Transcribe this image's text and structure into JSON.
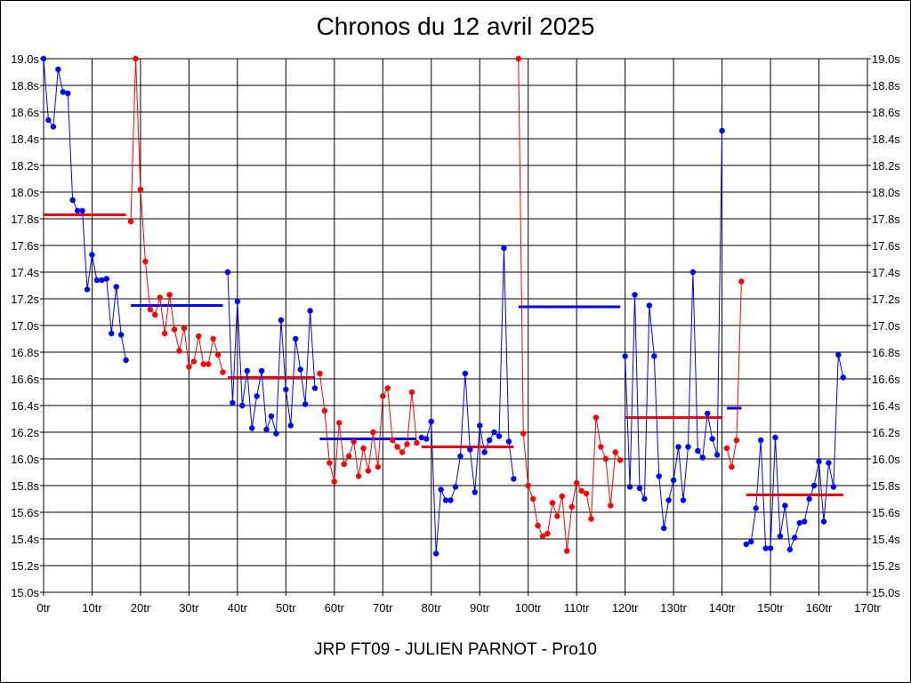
{
  "chart_data": {
    "type": "line",
    "title": "Chronos du 12 avril 2025",
    "subtitle": "JRP FT09 - JULIEN PARNOT - Pro10",
    "xlim": [
      0,
      170
    ],
    "ylim": [
      15.0,
      19.0
    ],
    "grid": true,
    "x_ticks": [
      "0tr",
      "10tr",
      "20tr",
      "30tr",
      "40tr",
      "50tr",
      "60tr",
      "70tr",
      "80tr",
      "90tr",
      "100tr",
      "110tr",
      "120tr",
      "130tr",
      "140tr",
      "150tr",
      "160tr",
      "170tr"
    ],
    "y_ticks": [
      "15.0s",
      "15.2s",
      "15.4s",
      "15.6s",
      "15.8s",
      "16.0s",
      "16.2s",
      "16.4s",
      "16.6s",
      "16.8s",
      "17.0s",
      "17.2s",
      "17.4s",
      "17.6s",
      "17.8s",
      "18.0s",
      "18.2s",
      "18.4s",
      "18.6s",
      "18.8s",
      "19.0s"
    ],
    "series": [
      {
        "color": "#0000ff",
        "x": [
          0,
          1,
          2,
          3,
          4,
          5,
          6,
          7,
          8,
          9,
          10,
          11,
          12,
          13,
          14,
          15,
          16,
          17
        ],
        "y": [
          19.0,
          18.54,
          18.49,
          18.92,
          18.75,
          18.74,
          17.94,
          17.86,
          17.86,
          17.27,
          17.53,
          17.34,
          17.34,
          17.35,
          16.94,
          17.29,
          16.93,
          16.74
        ]
      },
      {
        "color": "#ff0000",
        "x": [
          18,
          19,
          20,
          21,
          22,
          23,
          24,
          25,
          26,
          27,
          28,
          29,
          30,
          31,
          32,
          33,
          34,
          35,
          36,
          37
        ],
        "y": [
          17.78,
          19.0,
          18.02,
          17.48,
          17.12,
          17.08,
          17.21,
          16.94,
          17.23,
          16.97,
          16.81,
          16.98,
          16.69,
          16.73,
          16.92,
          16.71,
          16.71,
          16.9,
          16.78,
          16.65
        ]
      },
      {
        "color": "#0000ff",
        "x": [
          38,
          39,
          40,
          41,
          42,
          43,
          44,
          45,
          46,
          47,
          48,
          49,
          50,
          51,
          52,
          53,
          54,
          55,
          56
        ],
        "y": [
          17.4,
          16.42,
          17.18,
          16.4,
          16.66,
          16.23,
          16.47,
          16.66,
          16.22,
          16.32,
          16.19,
          17.04,
          16.52,
          16.25,
          16.9,
          16.67,
          16.41,
          17.11,
          16.53
        ]
      },
      {
        "color": "#ff0000",
        "x": [
          57,
          58,
          59,
          60,
          61,
          62,
          63,
          64,
          65,
          66,
          67,
          68,
          69,
          70,
          71,
          72,
          73,
          74,
          75,
          76,
          77
        ],
        "y": [
          16.64,
          16.36,
          15.97,
          15.83,
          16.27,
          15.96,
          16.02,
          16.13,
          15.87,
          16.08,
          15.91,
          16.2,
          15.94,
          16.47,
          16.53,
          16.14,
          16.09,
          16.05,
          16.11,
          16.5,
          16.12
        ]
      },
      {
        "color": "#0000ff",
        "x": [
          78,
          79,
          80,
          81,
          82,
          83,
          84,
          85,
          86,
          87,
          88,
          89,
          90,
          91,
          92,
          93,
          94,
          95,
          96,
          97
        ],
        "y": [
          16.16,
          16.15,
          16.28,
          15.29,
          15.77,
          15.69,
          15.69,
          15.79,
          16.02,
          16.64,
          16.07,
          15.75,
          16.25,
          16.05,
          16.14,
          16.2,
          16.17,
          17.58,
          16.13,
          15.85
        ]
      },
      {
        "color": "#ff0000",
        "x": [
          98,
          99,
          100,
          101,
          102,
          103,
          104,
          105,
          106,
          107,
          108,
          109,
          110,
          111,
          112,
          113,
          114,
          115,
          116,
          117,
          118,
          119
        ],
        "y": [
          19.0,
          16.19,
          15.8,
          15.7,
          15.5,
          15.42,
          15.44,
          15.67,
          15.57,
          15.72,
          15.31,
          15.64,
          15.82,
          15.76,
          15.74,
          15.55,
          16.31,
          16.09,
          16.0,
          15.65,
          16.05,
          15.99
        ]
      },
      {
        "color": "#0000ff",
        "x": [
          120,
          121,
          122,
          123,
          124,
          125,
          126,
          127,
          128,
          129,
          130,
          131,
          132,
          133,
          134,
          135,
          136,
          137,
          138,
          139,
          140
        ],
        "y": [
          16.77,
          15.79,
          17.23,
          15.78,
          15.7,
          17.15,
          16.77,
          15.87,
          15.48,
          15.69,
          15.84,
          16.09,
          15.69,
          16.09,
          17.4,
          16.06,
          16.01,
          16.34,
          16.15,
          16.03,
          18.46
        ]
      },
      {
        "color": "#ff0000",
        "x": [
          141,
          142,
          143,
          144
        ],
        "y": [
          16.08,
          15.94,
          16.14,
          17.33
        ]
      },
      {
        "color": "#0000ff",
        "x": [
          145,
          146,
          147,
          148,
          149,
          150,
          151,
          152,
          153,
          154,
          155,
          156,
          157,
          158,
          159,
          160,
          161,
          162,
          163,
          164,
          165
        ],
        "y": [
          15.36,
          15.38,
          15.63,
          16.14,
          15.33,
          15.33,
          16.16,
          15.42,
          15.65,
          15.32,
          15.41,
          15.52,
          15.53,
          15.7,
          15.8,
          15.98,
          15.53,
          15.97,
          15.79,
          16.78,
          16.61
        ]
      }
    ],
    "averages": [
      {
        "color": "#ff0000",
        "x": [
          0,
          17
        ],
        "y": 17.83
      },
      {
        "color": "#0000ff",
        "x": [
          18,
          37
        ],
        "y": 17.15
      },
      {
        "color": "#ff0000",
        "x": [
          38,
          56
        ],
        "y": 16.61
      },
      {
        "color": "#0000ff",
        "x": [
          57,
          77
        ],
        "y": 16.15
      },
      {
        "color": "#ff0000",
        "x": [
          78,
          97
        ],
        "y": 16.09
      },
      {
        "color": "#0000ff",
        "x": [
          98,
          119
        ],
        "y": 17.14
      },
      {
        "color": "#ff0000",
        "x": [
          120,
          140
        ],
        "y": 16.31
      },
      {
        "color": "#0000ff",
        "x": [
          141,
          144
        ],
        "y": 16.38
      },
      {
        "color": "#ff0000",
        "x": [
          145,
          165
        ],
        "y": 15.73
      }
    ]
  }
}
